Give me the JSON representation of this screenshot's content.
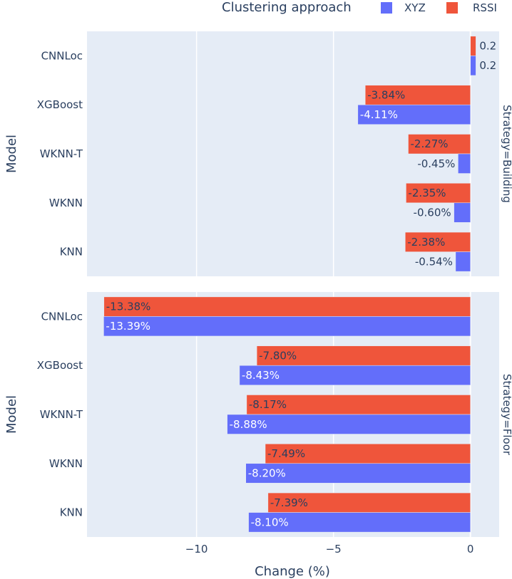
{
  "chart_data": {
    "type": "bar",
    "orientation": "horizontal",
    "xlabel": "Change (%)",
    "ylabel": "Model",
    "xlim": [
      -14,
      1.05
    ],
    "x_ticks": [
      -10,
      -5,
      0
    ],
    "x_tick_labels": [
      "−10",
      "−5",
      "0"
    ],
    "legend": {
      "title": "Clustering approach",
      "placement": "top-right",
      "entries": [
        {
          "name": "XYZ",
          "color": "#636efa"
        },
        {
          "name": "RSSI",
          "color": "#ef553b"
        }
      ]
    },
    "categories": [
      "CNNLoc",
      "XGBoost",
      "WKNN-T",
      "WKNN",
      "KNN"
    ],
    "facets": [
      {
        "label": "Strategy=Building",
        "series": [
          {
            "name": "RSSI",
            "color": "#ef553b",
            "values": [
              0.2,
              -3.84,
              -2.27,
              -2.35,
              -2.38
            ],
            "labels": [
              "0.2",
              "-3.84%",
              "-2.27%",
              "-2.35%",
              "-2.38%"
            ]
          },
          {
            "name": "XYZ",
            "color": "#636efa",
            "values": [
              0.2,
              -4.11,
              -0.45,
              -0.6,
              -0.54
            ],
            "labels": [
              "0.2",
              "-4.11%",
              "-0.45%",
              "-0.60%",
              "-0.54%"
            ]
          }
        ]
      },
      {
        "label": "Strategy=Floor",
        "series": [
          {
            "name": "RSSI",
            "color": "#ef553b",
            "values": [
              -13.38,
              -7.8,
              -8.17,
              -7.49,
              -7.39
            ],
            "labels": [
              "-13.38%",
              "-7.80%",
              "-8.17%",
              "-7.49%",
              "-7.39%"
            ]
          },
          {
            "name": "XYZ",
            "color": "#636efa",
            "values": [
              -13.39,
              -8.43,
              -8.88,
              -8.2,
              -8.1
            ],
            "labels": [
              "-13.39%",
              "-8.43%",
              "-8.88%",
              "-8.20%",
              "-8.10%"
            ]
          }
        ]
      }
    ]
  }
}
